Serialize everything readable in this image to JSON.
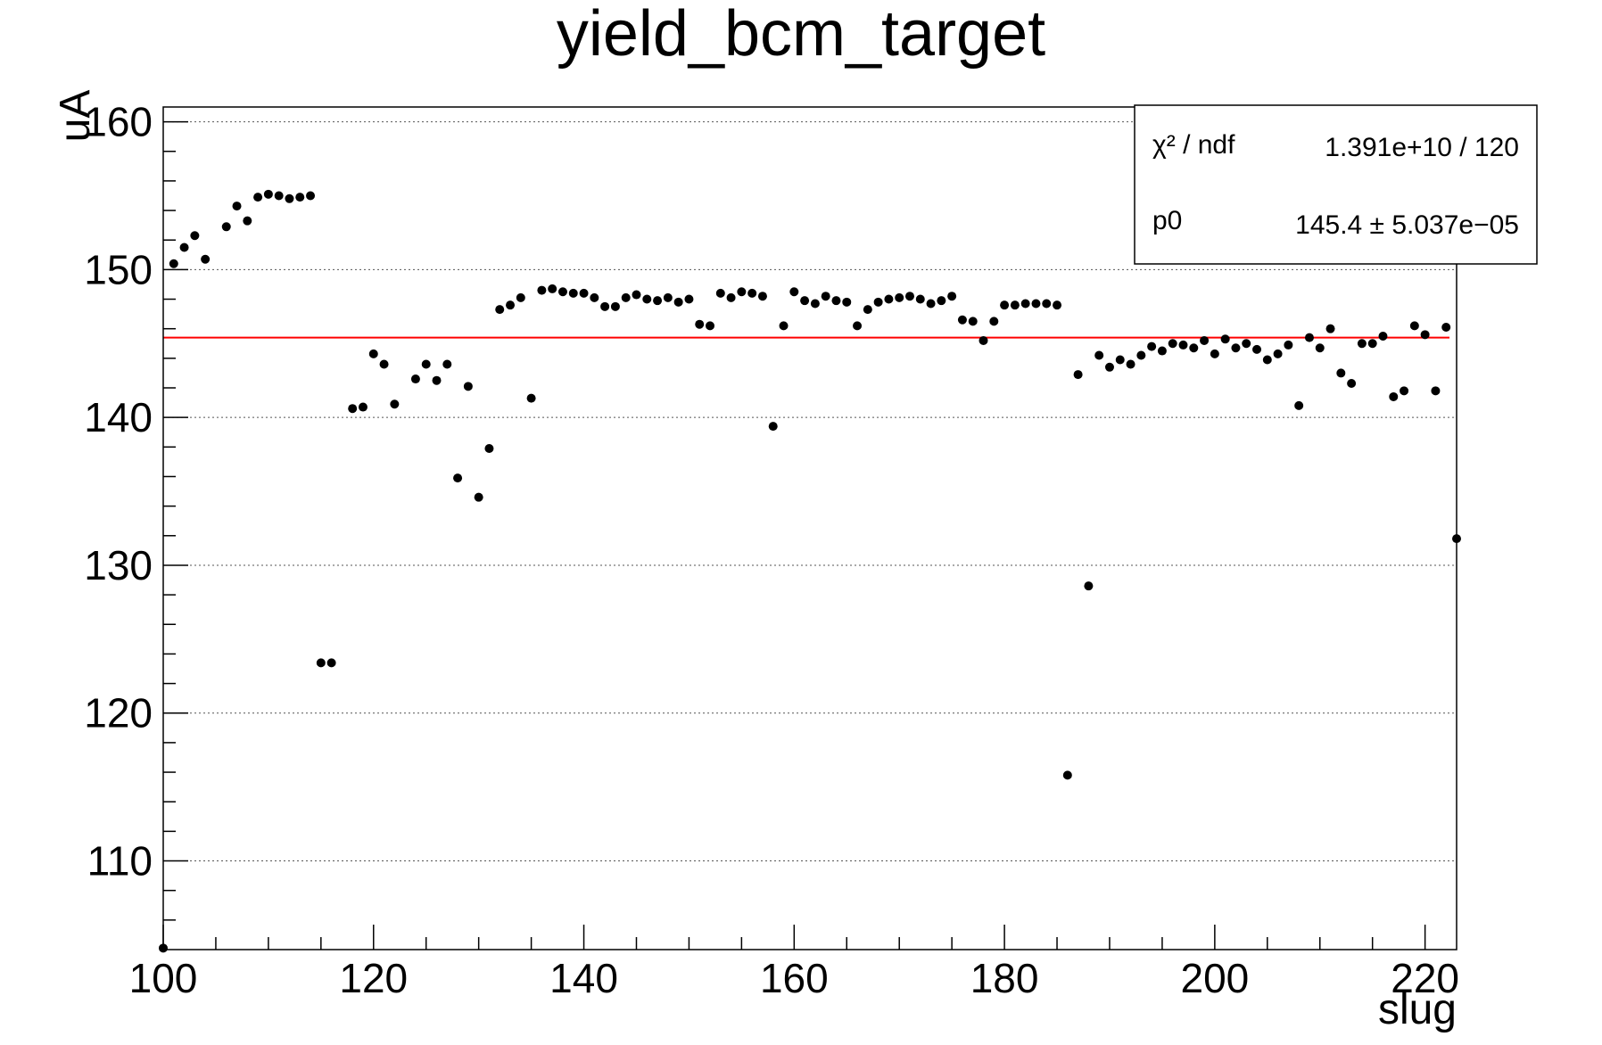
{
  "chart_data": {
    "type": "scatter",
    "title": "yield_bcm_target",
    "xlabel": "slug",
    "ylabel": "uA",
    "xlim": [
      100,
      223
    ],
    "ylim": [
      104,
      161
    ],
    "xticks": [
      100,
      120,
      140,
      160,
      180,
      200,
      220
    ],
    "yticks": [
      110,
      120,
      130,
      140,
      150,
      160
    ],
    "grid": "horizontal dotted",
    "series": [
      {
        "x": [
          100,
          101,
          102,
          103,
          104,
          106,
          107,
          108,
          109,
          110,
          111,
          112,
          113,
          114,
          115,
          116,
          118,
          119,
          120,
          121,
          122,
          124,
          125,
          126,
          127,
          128,
          129,
          130,
          131,
          132,
          133,
          134,
          135,
          136,
          137,
          138,
          139,
          140,
          141,
          142,
          143,
          144,
          145,
          146,
          147,
          148,
          149,
          150,
          151,
          152,
          153,
          154,
          155,
          156,
          157,
          158,
          159,
          160,
          161,
          162,
          163,
          164,
          165,
          166,
          167,
          168,
          169,
          170,
          171,
          172,
          173,
          174,
          175,
          176,
          177,
          178,
          179,
          180,
          181,
          182,
          183,
          184,
          185,
          186,
          187,
          188,
          189,
          190,
          191,
          192,
          193,
          194,
          195,
          196,
          197,
          198,
          199,
          200,
          201,
          202,
          203,
          204,
          205,
          206,
          207,
          208,
          209,
          210,
          211,
          212,
          213,
          214,
          215,
          216,
          217,
          218,
          219,
          220,
          221,
          222,
          223
        ],
        "y": [
          104.1,
          150.4,
          151.5,
          152.3,
          150.7,
          152.9,
          154.3,
          153.3,
          154.9,
          155.1,
          155.0,
          154.8,
          154.9,
          155.0,
          123.4,
          123.4,
          140.6,
          140.7,
          144.3,
          143.6,
          140.9,
          142.6,
          143.6,
          142.5,
          143.6,
          135.9,
          142.1,
          134.6,
          137.9,
          147.3,
          147.6,
          148.1,
          141.3,
          148.6,
          148.7,
          148.5,
          148.4,
          148.4,
          148.1,
          147.5,
          147.5,
          148.1,
          148.3,
          148.0,
          147.9,
          148.1,
          147.8,
          148.0,
          146.3,
          146.2,
          148.4,
          148.1,
          148.5,
          148.4,
          148.2,
          139.4,
          146.2,
          148.5,
          147.9,
          147.7,
          148.2,
          147.9,
          147.8,
          146.2,
          147.3,
          147.8,
          148.0,
          148.1,
          148.2,
          148.0,
          147.7,
          147.9,
          148.2,
          146.6,
          146.5,
          145.2,
          146.5,
          147.6,
          147.6,
          147.7,
          147.7,
          147.7,
          147.6,
          115.8,
          142.9,
          128.6,
          144.2,
          143.4,
          143.9,
          143.6,
          144.2,
          144.8,
          144.5,
          145.0,
          144.9,
          144.7,
          145.2,
          144.3,
          145.3,
          144.7,
          145.0,
          144.6,
          143.9,
          144.3,
          144.9,
          140.8,
          145.4,
          144.7,
          146.0,
          143.0,
          142.3,
          145.0,
          145.0,
          145.5,
          141.4,
          141.8,
          146.2,
          145.6,
          141.8,
          146.1,
          131.8
        ]
      }
    ],
    "fit": {
      "p0": 145.4,
      "color": "#ff0000"
    },
    "stats": {
      "row1_label": "χ² / ndf",
      "row1_value": "1.391e+10 / 120",
      "row2_label": "p0",
      "row2_value": "145.4 ± 5.037e−05"
    },
    "marker_color": "#000000"
  }
}
